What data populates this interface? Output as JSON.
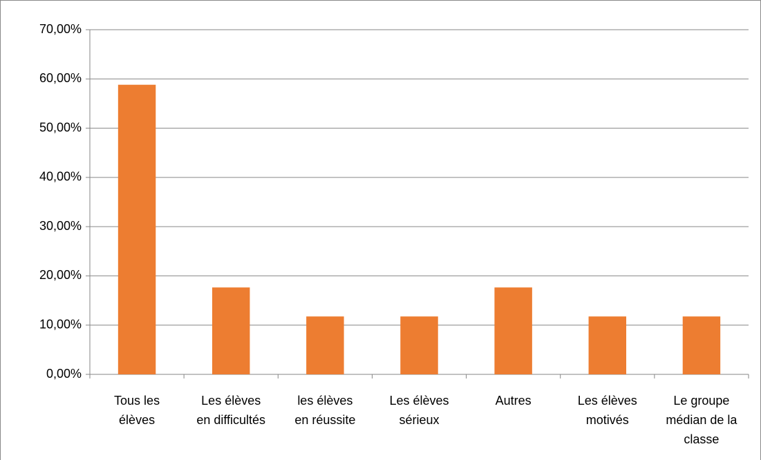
{
  "chart_data": {
    "type": "bar",
    "categories": [
      "Tous les élèves",
      "Les élèves en difficultés",
      "les élèves en réussite",
      "Les élèves sérieux",
      "Autres",
      "Les élèves motivés",
      "Le groupe médian de la classe"
    ],
    "values": [
      58.82,
      17.65,
      11.76,
      11.76,
      17.65,
      11.76,
      11.76
    ],
    "color": "#ed7d31",
    "ylim": [
      0,
      70
    ],
    "yticks": [
      {
        "value": 0,
        "label": "0,00%"
      },
      {
        "value": 10,
        "label": "10,00%"
      },
      {
        "value": 20,
        "label": "20,00%"
      },
      {
        "value": 30,
        "label": "30,00%"
      },
      {
        "value": 40,
        "label": "40,00%"
      },
      {
        "value": 50,
        "label": "50,00%"
      },
      {
        "value": 60,
        "label": "60,00%"
      },
      {
        "value": 70,
        "label": "70,00%"
      }
    ],
    "grid": true
  }
}
